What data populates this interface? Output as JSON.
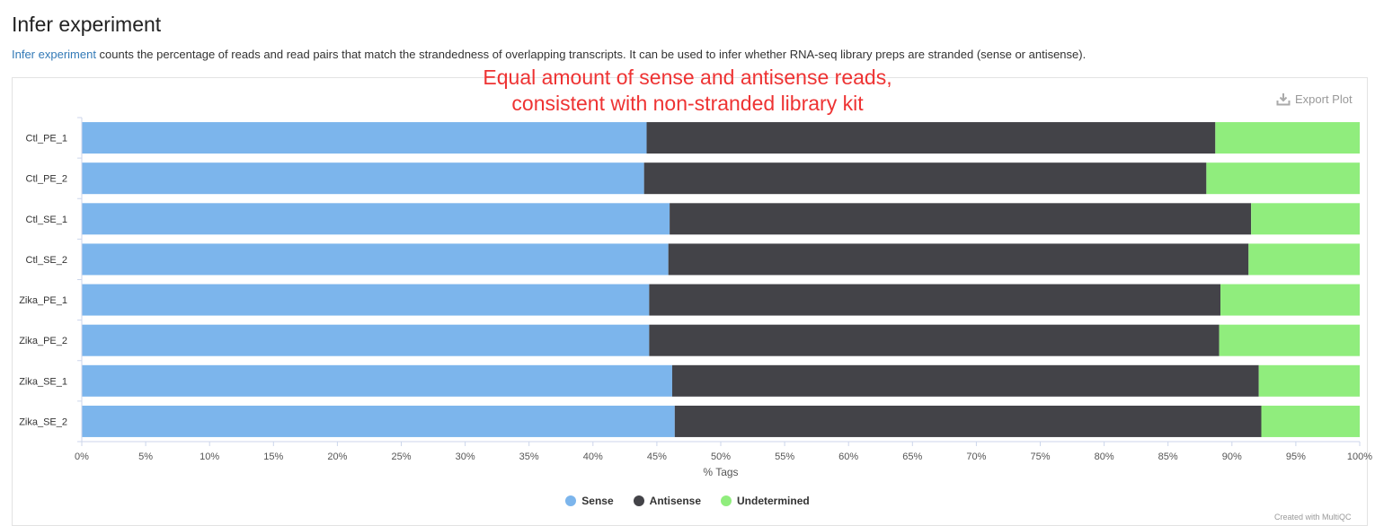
{
  "header": {
    "title": "Infer experiment",
    "link_text": "Infer experiment",
    "description": " counts the percentage of reads and read pairs that match the strandedness of overlapping transcripts. It can be used to infer whether RNA-seq library preps are stranded (sense or antisense)."
  },
  "toolbar": {
    "export_label": "Export Plot",
    "export_icon": "download-icon"
  },
  "annotation": {
    "line1": "Equal amount of sense and antisense reads,",
    "line2": "consistent with non-stranded library kit"
  },
  "credits": "Created with MultiQC",
  "colors": {
    "sense": "#7cb5ec",
    "antisense": "#434348",
    "undetermined": "#90ed7d",
    "annotation": "#ee3333",
    "link": "#337ab7"
  },
  "chart_data": {
    "type": "bar",
    "orientation": "horizontal",
    "stacked": true,
    "categories": [
      "Ctl_PE_1",
      "Ctl_PE_2",
      "Ctl_SE_1",
      "Ctl_SE_2",
      "Zika_PE_1",
      "Zika_PE_2",
      "Zika_SE_1",
      "Zika_SE_2"
    ],
    "series": [
      {
        "name": "Sense",
        "values": [
          44.2,
          44.0,
          46.0,
          45.9,
          44.4,
          44.4,
          46.2,
          46.4
        ]
      },
      {
        "name": "Antisense",
        "values": [
          44.5,
          44.0,
          45.5,
          45.4,
          44.7,
          44.6,
          45.9,
          45.9
        ]
      },
      {
        "name": "Undetermined",
        "values": [
          11.3,
          12.0,
          8.5,
          8.7,
          10.9,
          11.0,
          7.9,
          7.7
        ]
      }
    ],
    "xlabel": "% Tags",
    "ylabel": "",
    "xlim": [
      0,
      100
    ],
    "xticks": [
      "0%",
      "5%",
      "10%",
      "15%",
      "20%",
      "25%",
      "30%",
      "35%",
      "40%",
      "45%",
      "50%",
      "55%",
      "60%",
      "65%",
      "70%",
      "75%",
      "80%",
      "85%",
      "90%",
      "95%",
      "100%"
    ],
    "grid": false,
    "legend_position": "bottom-center"
  }
}
